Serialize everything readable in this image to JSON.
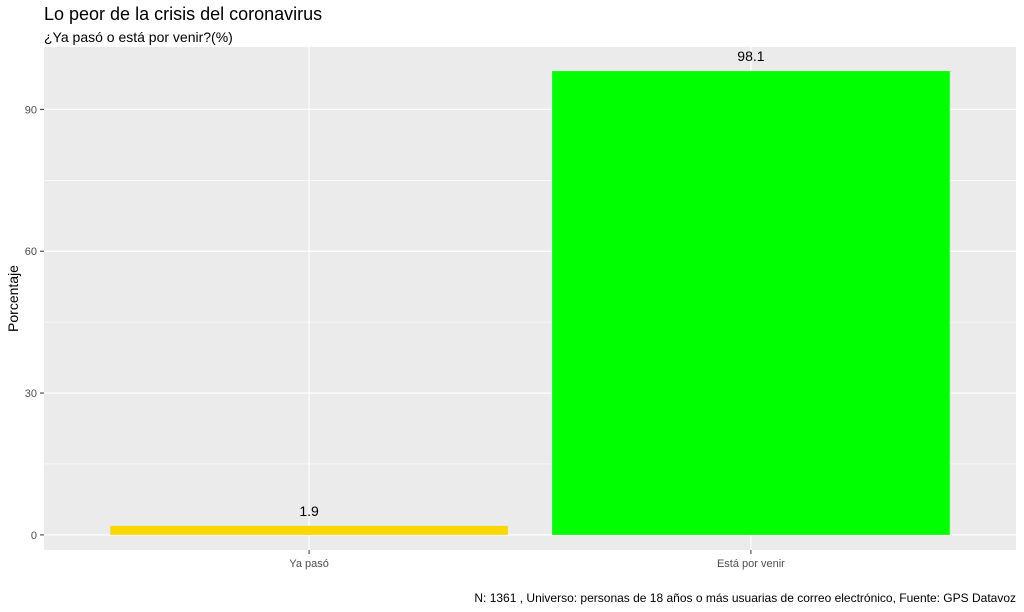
{
  "chart_data": {
    "type": "bar",
    "title": "Lo peor de la crisis del coronavirus",
    "subtitle": "¿Ya pasó o está por venir?(%)",
    "caption": "N: 1361 , Universo: personas de 18 años o más usuarias de correo electrónico, Fuente: GPS Datavoz",
    "xlabel": "",
    "ylabel": "Porcentaje",
    "categories": [
      "Ya pasó",
      "Está por venir"
    ],
    "values": [
      1.9,
      98.1
    ],
    "data_labels": [
      "1.9",
      "98.1"
    ],
    "bar_colors": [
      "#FFD700",
      "#00FF00"
    ],
    "yticks": [
      0,
      30,
      60,
      90
    ],
    "ylim": [
      -3.2,
      103.2
    ],
    "grid": true,
    "panel_background": "#EBEBEB",
    "grid_color": "#FFFFFF"
  }
}
